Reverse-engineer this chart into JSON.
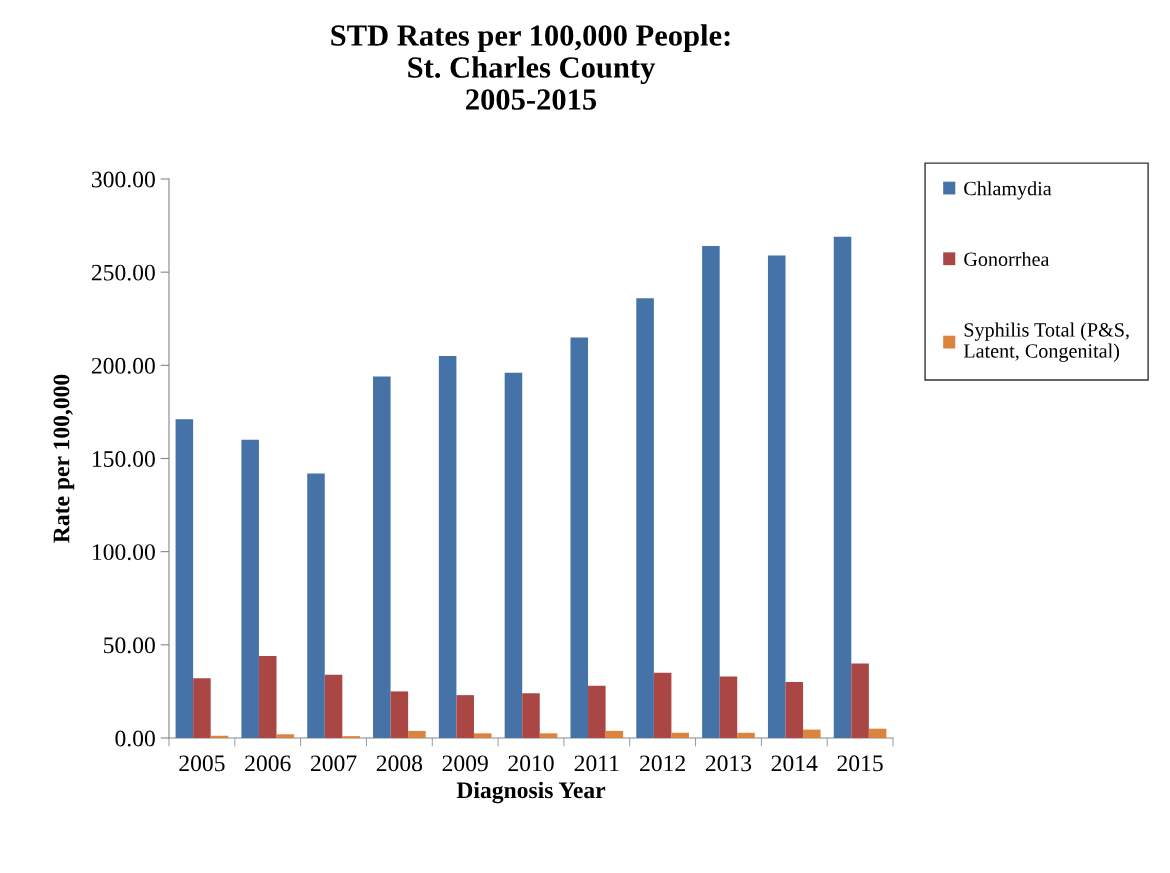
{
  "chart_data": {
    "type": "bar",
    "title": "STD Rates per 100,000 People:\nSt. Charles County\n2005-2015",
    "xlabel": "Diagnosis Year",
    "ylabel": "Rate per 100,000",
    "categories": [
      "2005",
      "2006",
      "2007",
      "2008",
      "2009",
      "2010",
      "2011",
      "2012",
      "2013",
      "2014",
      "2015"
    ],
    "series": [
      {
        "name": "Chlamydia",
        "color": "#4572a7",
        "values": [
          171,
          160,
          142,
          194,
          205,
          196,
          215,
          236,
          264,
          259,
          269
        ]
      },
      {
        "name": "Gonorrhea",
        "color": "#aa4643",
        "values": [
          32,
          44,
          34,
          25,
          23,
          24,
          28,
          35,
          33,
          30,
          40
        ]
      },
      {
        "name": "Syphilis Total (P&S,\nLatent, Congenital)",
        "color": "#db843d",
        "values": [
          1.2,
          2,
          1,
          3.8,
          2.5,
          2.5,
          3.8,
          2.8,
          2.8,
          4.5,
          5
        ]
      }
    ],
    "ylim": [
      0,
      300
    ],
    "yticks": [
      {
        "value": 0,
        "label": "0.00"
      },
      {
        "value": 50,
        "label": "50.00"
      },
      {
        "value": 100,
        "label": "100.00"
      },
      {
        "value": 150,
        "label": "150.00"
      },
      {
        "value": 200,
        "label": "200.00"
      },
      {
        "value": 250,
        "label": "250.00"
      },
      {
        "value": 300,
        "label": "300.00"
      }
    ],
    "grid": false,
    "legend": "right"
  }
}
